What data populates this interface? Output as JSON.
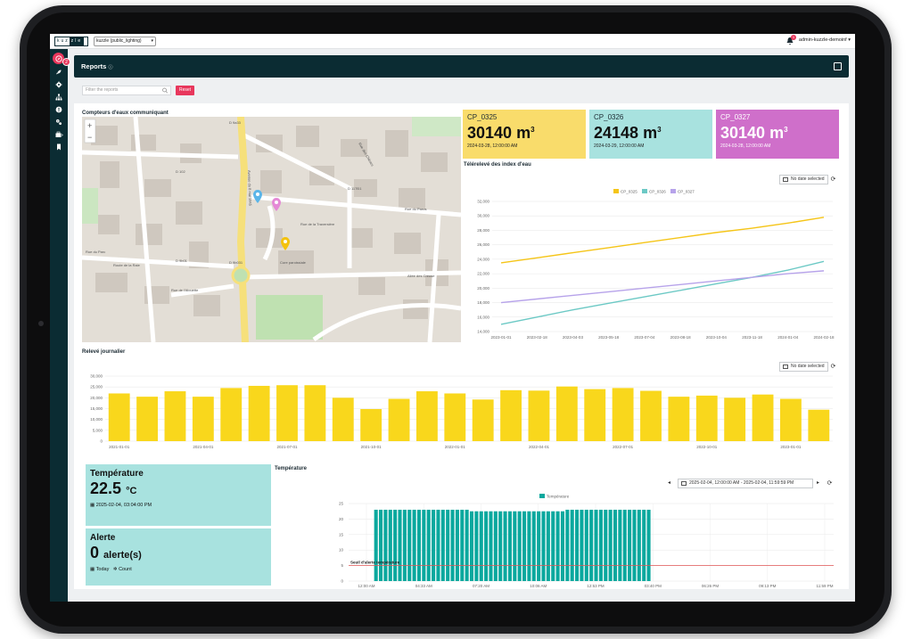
{
  "topbar": {
    "logo_left": "kuz",
    "logo_right": "zle",
    "tenant": "kuzzle (public_lighting)",
    "notification_count": "1",
    "user": "admin-kuzzle-demoinf ▾"
  },
  "sidebar": {
    "badge": "2"
  },
  "header": {
    "title": "Reports",
    "title_suffix": "ⓘ"
  },
  "filter": {
    "placeholder": "Filter the reports",
    "reset_label": "Reset"
  },
  "map": {
    "title": "Compteurs d'eaux communiquant",
    "zoom_in": "+",
    "zoom_out": "−",
    "labels": [
      "D 9a33",
      "D 117Ð1",
      "D 102",
      "D 9b031",
      "D 9b01",
      "Rue du Parus",
      "Rue de la Traversière",
      "Allée des Creuse",
      "Rue de l'Alouette",
      "Rue du Parc",
      "Route de la Raie",
      "Cure paroissiale",
      "Avenue du 8 mai 1945",
      "Rue des Chênes"
    ]
  },
  "meters": [
    {
      "name": "CP_0325",
      "value": "30140",
      "unit": "m",
      "unit_exp": "3",
      "date": "2024-03-28, 12:00:00 AM",
      "color": "#f9dc6b"
    },
    {
      "name": "CP_0326",
      "value": "24148",
      "unit": "m",
      "unit_exp": "3",
      "date": "2024-03-29, 12:00:00 AM",
      "color": "#a8e2df"
    },
    {
      "name": "CP_0327",
      "value": "30140",
      "unit": "m",
      "unit_exp": "3",
      "date": "2024-03-28, 12:00:00 AM",
      "color": "#cf6fca"
    }
  ],
  "line_chart_card": {
    "title": "Télérelevé des index d'eau",
    "date_chip": "No date selected",
    "refresh": "⟳"
  },
  "daily_card": {
    "title": "Relevé journalier",
    "date_chip": "No date selected",
    "refresh": "⟳"
  },
  "temperature_kpi": {
    "title": "Température",
    "value": "22.5",
    "unit": "°C",
    "date": "2025-02-04, 03:04:00 PM"
  },
  "alert_kpi": {
    "title": "Alerte",
    "value": "0",
    "unit": "alerte(s)",
    "period": "Today",
    "mode": "Count"
  },
  "temp_chart_card": {
    "title": "Température",
    "range": "2025-02-04, 12:00:00 AM - 2025-02-04, 11:59:59 PM",
    "prev": "◂",
    "next": "▸",
    "refresh": "⟳"
  },
  "chart_data": [
    {
      "type": "line",
      "title": "Télérelevé des index d'eau",
      "x": [
        "2023-01-01",
        "2023-02-18",
        "2023-04-03",
        "2023-05-18",
        "2023-07-04",
        "2023-08-18",
        "2023-10-04",
        "2023-11-18",
        "2024-01-04",
        "2024-02-18"
      ],
      "series": [
        {
          "name": "CP_0325",
          "color": "#f5c518",
          "values": [
            23500,
            24200,
            24900,
            25600,
            26300,
            27000,
            27700,
            28300,
            29000,
            29800
          ]
        },
        {
          "name": "CP_0326",
          "color": "#6cc9c5",
          "values": [
            15000,
            16000,
            17000,
            17900,
            18800,
            19700,
            20600,
            21500,
            22500,
            23700
          ]
        },
        {
          "name": "CP_0327",
          "color": "#b7a3ea",
          "values": [
            18000,
            18500,
            19000,
            19500,
            20000,
            20500,
            21000,
            21500,
            22000,
            22400
          ]
        }
      ],
      "ylim": [
        14000,
        32000
      ],
      "yticks": [
        "14,000",
        "16,000",
        "18,000",
        "20,000",
        "22,000",
        "24,000",
        "26,000",
        "28,000",
        "30,000",
        "32,000"
      ],
      "legend": "top-center",
      "grid": true
    },
    {
      "type": "bar",
      "title": "Relevé journalier",
      "values": [
        22000,
        20500,
        23000,
        20500,
        24500,
        25500,
        25800,
        25800,
        20000,
        14800,
        19500,
        23000,
        22000,
        19200,
        23500,
        23300,
        25200,
        24000,
        24500,
        23200,
        20500,
        21000,
        20000,
        21500,
        19500,
        14500
      ],
      "xticks": [
        "2021-01-01",
        "2021-04-01",
        "2021-07-01",
        "2021-10-01",
        "2022-01-01",
        "2022-04-01",
        "2022-07-01",
        "2022-10-01",
        "2023-01-01"
      ],
      "yticks": [
        "0",
        "5,000",
        "10,000",
        "15,000",
        "20,000",
        "25,000",
        "30,000"
      ],
      "ylim": [
        0,
        30000
      ],
      "color": "#f9d71c",
      "grid": true
    },
    {
      "type": "bar",
      "title": "Température",
      "series": [
        {
          "name": "Température",
          "color": "#0aa89e"
        }
      ],
      "bar_count": 58,
      "bar_values": [
        23,
        23,
        23,
        23,
        23,
        23,
        23,
        23,
        23,
        23,
        23,
        23,
        23,
        23,
        23,
        23,
        23,
        23,
        23,
        23,
        22.5,
        22.5,
        22.5,
        22.5,
        22.5,
        22.5,
        22.5,
        22.5,
        22.5,
        22.5,
        22.5,
        22.5,
        22.5,
        22.5,
        22.5,
        22.5,
        22.5,
        22.5,
        22.5,
        22.5,
        23,
        23,
        23,
        23,
        23,
        23,
        23,
        23,
        23,
        23,
        23,
        23,
        23,
        23,
        23,
        23,
        23,
        23
      ],
      "threshold": {
        "label": "Seuil d'alerte température",
        "value": 5,
        "color": "#e05555"
      },
      "xticks": [
        "12:00 AM",
        "04:33 AM",
        "07:20 AM",
        "10:06 AM",
        "12:53 PM",
        "03:40 PM",
        "06:26 PM",
        "09:13 PM",
        "11:59 PM"
      ],
      "yticks": [
        "0",
        "5",
        "10",
        "15",
        "20",
        "25"
      ],
      "ylim": [
        0,
        25
      ],
      "legend": "top-center",
      "grid": true
    }
  ]
}
